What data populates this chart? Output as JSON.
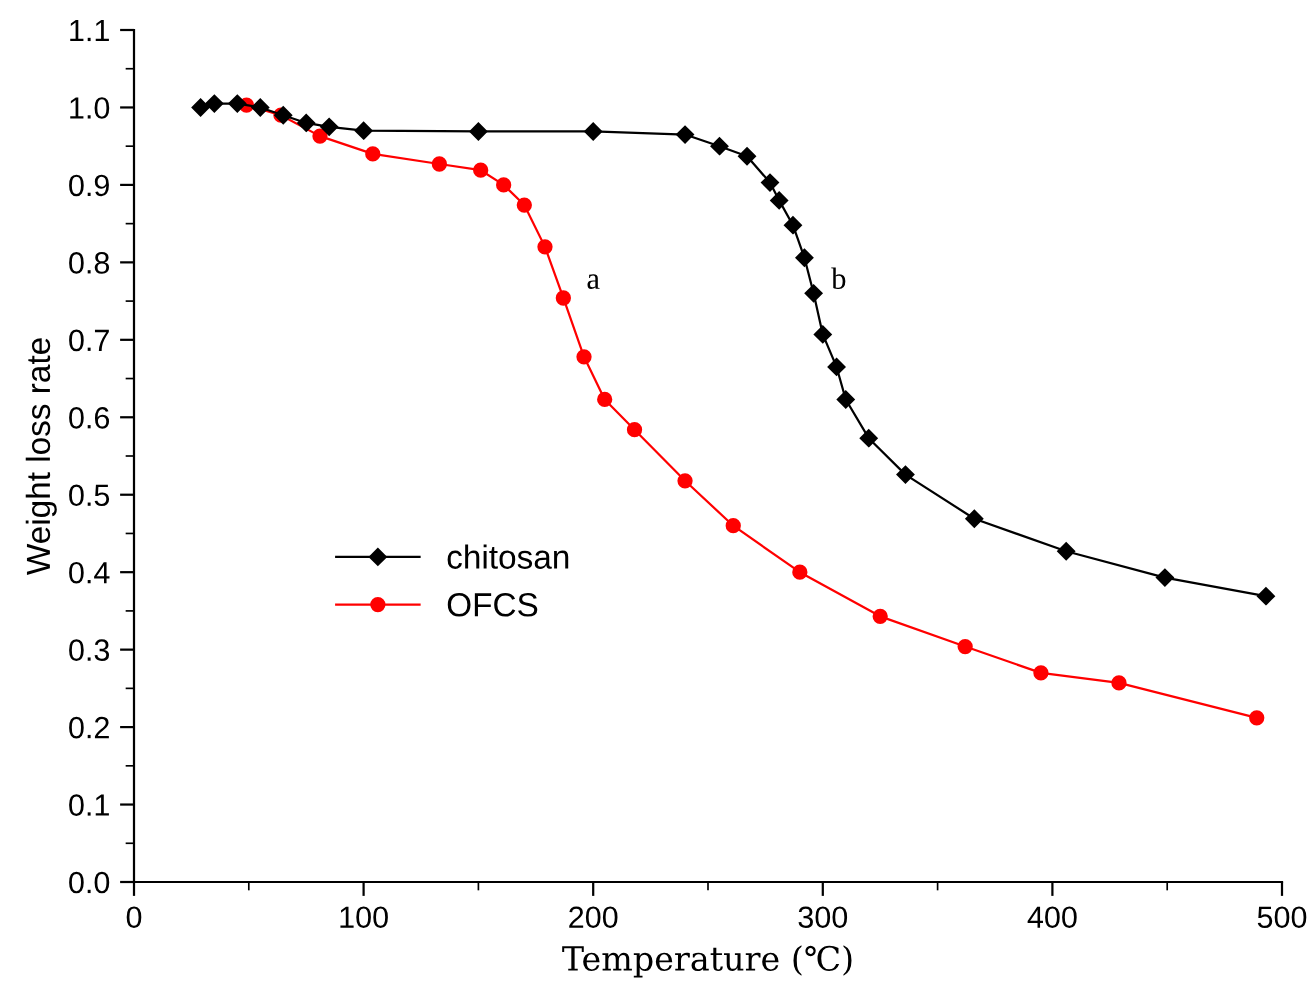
{
  "chart_data": {
    "type": "line",
    "xlabel": "Temperature (℃)",
    "ylabel": "Weight loss rate",
    "xlim": [
      0,
      500
    ],
    "xticks": [
      0,
      100,
      200,
      300,
      400,
      500
    ],
    "ylim": [
      0.0,
      1.1
    ],
    "yticks": [
      {
        "value": 0.0,
        "label": "0.0"
      },
      0.1,
      0.2,
      0.3,
      0.4,
      0.5,
      0.6,
      0.7,
      0.8,
      0.9,
      {
        "value": 1.0,
        "label": "1.0"
      },
      1.1
    ],
    "grid": false,
    "legend": "left",
    "line_style": "solid",
    "annotations": [
      "a",
      "b"
    ],
    "series": [
      {
        "name": "chitosan",
        "color": "#000000",
        "marker": "diamond",
        "x": [
          29,
          35,
          45,
          55,
          65,
          75,
          85,
          100,
          150,
          200,
          240,
          255,
          267,
          277,
          281,
          287,
          292,
          296,
          300,
          306,
          310,
          320,
          336,
          366,
          406,
          449,
          493
        ],
        "values": [
          1.0,
          1.005,
          1.005,
          1.0,
          0.99,
          0.98,
          0.975,
          0.97,
          0.969,
          0.969,
          0.965,
          0.95,
          0.937,
          0.903,
          0.88,
          0.848,
          0.806,
          0.76,
          0.707,
          0.665,
          0.623,
          0.573,
          0.526,
          0.469,
          0.427,
          0.393,
          0.369
        ]
      },
      {
        "name": "OFCS",
        "color": "#ff0000",
        "marker": "circle",
        "x": [
          49,
          64,
          81,
          104,
          133,
          151,
          161,
          170,
          179,
          187,
          196,
          205,
          218,
          240,
          261,
          290,
          325,
          362,
          395,
          429,
          489
        ],
        "values": [
          1.003,
          0.99,
          0.963,
          0.94,
          0.927,
          0.919,
          0.9,
          0.874,
          0.82,
          0.754,
          0.678,
          0.623,
          0.584,
          0.518,
          0.46,
          0.4,
          0.343,
          0.304,
          0.27,
          0.257,
          0.212
        ]
      }
    ]
  }
}
